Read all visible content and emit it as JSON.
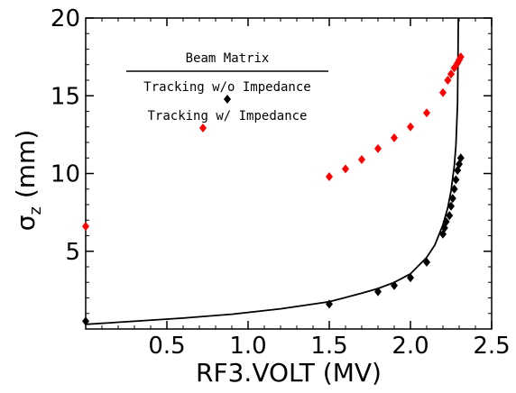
{
  "chart_data": {
    "type": "scatter",
    "xlabel": "RF3.VOLT (MV)",
    "ylabel": {
      "symbol": "σ",
      "subscript": "z",
      "unit": "(mm)"
    },
    "xlim": [
      0,
      2.5
    ],
    "ylim": [
      0,
      20
    ],
    "xticks": [
      0.5,
      1.0,
      1.5,
      2.0,
      2.5
    ],
    "xtick_labels": [
      "0.5",
      "1.0",
      "1.5",
      "2.0",
      "2.5"
    ],
    "yticks": [
      5,
      10,
      15,
      20
    ],
    "ytick_labels": [
      "5",
      "10",
      "15",
      "20"
    ],
    "grid": false,
    "legend_position": "top-left",
    "legend": {
      "title": "Beam Matrix",
      "entries": [
        "Tracking w/o Impedance",
        "Tracking w/ Impedance"
      ]
    },
    "series": [
      {
        "name": "Beam Matrix",
        "style": "line",
        "color": "#000000",
        "x": [
          0,
          0.3,
          0.6,
          0.9,
          1.2,
          1.5,
          1.7,
          1.8,
          1.9,
          2.0,
          2.1,
          2.15,
          2.2,
          2.23,
          2.25,
          2.27,
          2.28,
          2.29,
          2.295
        ],
        "y": [
          0.3,
          0.5,
          0.7,
          0.95,
          1.3,
          1.75,
          2.3,
          2.6,
          3.0,
          3.55,
          4.6,
          5.4,
          6.7,
          7.8,
          8.9,
          10.5,
          11.8,
          14.5,
          20
        ]
      },
      {
        "name": "Tracking w/o Impedance",
        "style": "markers",
        "color": "#000000",
        "x": [
          0,
          1.5,
          1.8,
          1.9,
          2.0,
          2.1,
          2.2,
          2.21,
          2.22,
          2.24,
          2.25,
          2.26,
          2.27,
          2.28,
          2.29,
          2.3,
          2.31
        ],
        "y": [
          0.5,
          1.6,
          2.4,
          2.8,
          3.3,
          4.3,
          6.1,
          6.5,
          6.9,
          7.3,
          7.9,
          8.4,
          9.0,
          9.6,
          10.2,
          10.6,
          11.0
        ]
      },
      {
        "name": "Tracking w/ Impedance",
        "style": "markers",
        "color": "#ff0000",
        "x": [
          0,
          1.5,
          1.6,
          1.7,
          1.8,
          1.9,
          2.0,
          2.1,
          2.2,
          2.23,
          2.25,
          2.27,
          2.29,
          2.3,
          2.31
        ],
        "y": [
          6.6,
          9.8,
          10.3,
          10.9,
          11.6,
          12.3,
          13.0,
          13.9,
          15.2,
          16.0,
          16.4,
          16.8,
          17.1,
          17.3,
          17.5
        ]
      }
    ]
  }
}
